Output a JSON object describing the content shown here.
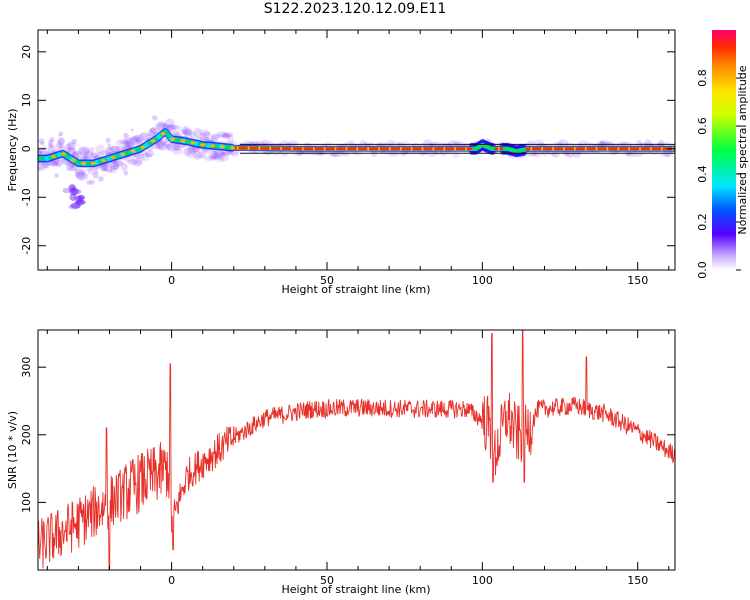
{
  "title": "S122.2023.120.12.09.E11",
  "chart_data": [
    {
      "type": "heatmap",
      "xlabel": "Height of straight line (km)",
      "ylabel": "Frequency (Hz)",
      "xlim": [
        -43,
        162
      ],
      "ylim": [
        -25,
        24.5
      ],
      "xticks": [
        0,
        50,
        100,
        150
      ],
      "yticks": [
        -20,
        -10,
        0,
        10,
        20
      ],
      "colorbar": {
        "label": "Normalized spectral amplitude",
        "range": [
          0,
          1
        ],
        "ticks": [
          "0.0",
          "0.2",
          "0.4",
          "0.6",
          "0.8"
        ],
        "colormap": "rainbow"
      },
      "ridge": [
        {
          "x": -40,
          "y": -2
        },
        {
          "x": -35,
          "y": -1
        },
        {
          "x": -30,
          "y": -3
        },
        {
          "x": -25,
          "y": -3
        },
        {
          "x": -20,
          "y": -2
        },
        {
          "x": -15,
          "y": -1
        },
        {
          "x": -10,
          "y": 0
        },
        {
          "x": -5,
          "y": 2
        },
        {
          "x": -2,
          "y": 3.5
        },
        {
          "x": 0,
          "y": 2
        },
        {
          "x": 5,
          "y": 1.5
        },
        {
          "x": 10,
          "y": 0.8
        },
        {
          "x": 20,
          "y": 0.2
        },
        {
          "x": 40,
          "y": 0
        },
        {
          "x": 98,
          "y": 0
        },
        {
          "x": 100,
          "y": 0.8
        },
        {
          "x": 103,
          "y": 0
        },
        {
          "x": 108,
          "y": 0
        },
        {
          "x": 111,
          "y": -0.5
        },
        {
          "x": 115,
          "y": 0
        },
        {
          "x": 162,
          "y": 0
        }
      ],
      "secondary_blob": [
        {
          "x": -32,
          "y": -10
        }
      ]
    },
    {
      "type": "line",
      "xlabel": "Height of straight line (km)",
      "ylabel": "SNR (10 * v/v)",
      "xlim": [
        -43,
        162
      ],
      "ylim": [
        0,
        355
      ],
      "xticks": [
        0,
        50,
        100,
        150
      ],
      "yticks": [
        100,
        200,
        300
      ],
      "color": "#e8302a",
      "envelope": [
        {
          "x": -43,
          "y": 35
        },
        {
          "x": -30,
          "y": 70
        },
        {
          "x": -20,
          "y": 100
        },
        {
          "x": -10,
          "y": 130
        },
        {
          "x": -1,
          "y": 150
        },
        {
          "x": 0,
          "y": 70
        },
        {
          "x": 5,
          "y": 140
        },
        {
          "x": 10,
          "y": 160
        },
        {
          "x": 20,
          "y": 195
        },
        {
          "x": 30,
          "y": 225
        },
        {
          "x": 45,
          "y": 238
        },
        {
          "x": 60,
          "y": 240
        },
        {
          "x": 80,
          "y": 238
        },
        {
          "x": 95,
          "y": 238
        },
        {
          "x": 102,
          "y": 215
        },
        {
          "x": 104,
          "y": 170
        },
        {
          "x": 108,
          "y": 230
        },
        {
          "x": 111,
          "y": 200
        },
        {
          "x": 114,
          "y": 200
        },
        {
          "x": 118,
          "y": 238
        },
        {
          "x": 130,
          "y": 243
        },
        {
          "x": 140,
          "y": 230
        },
        {
          "x": 150,
          "y": 205
        },
        {
          "x": 162,
          "y": 170
        }
      ],
      "spikes": [
        {
          "x": -21,
          "y": 210
        },
        {
          "x": -0.5,
          "y": 305
        },
        {
          "x": 103,
          "y": 350
        },
        {
          "x": 113,
          "y": 355
        },
        {
          "x": 133.5,
          "y": 315
        }
      ],
      "dips": [
        {
          "x": -20,
          "y": 0
        },
        {
          "x": 0.5,
          "y": 30
        },
        {
          "x": 103.5,
          "y": 130
        },
        {
          "x": 113.5,
          "y": 130
        }
      ]
    }
  ]
}
